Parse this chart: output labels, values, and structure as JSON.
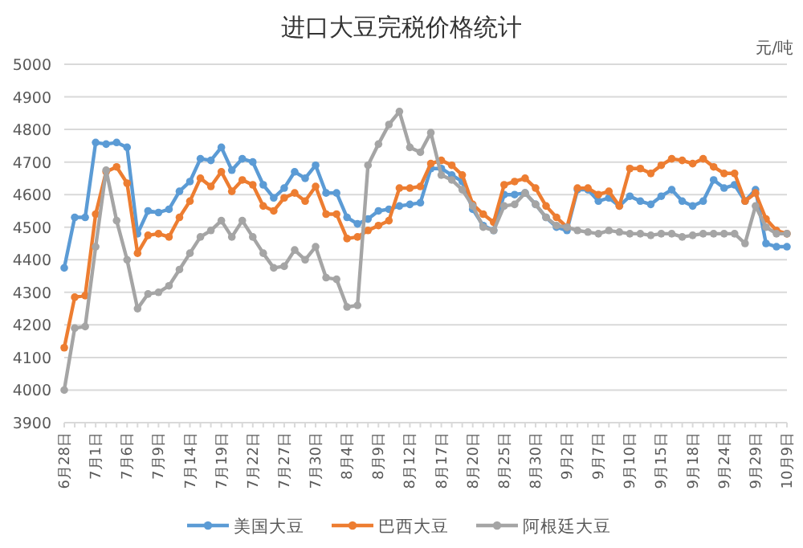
{
  "chart_data": {
    "type": "line",
    "title": "进口大豆完税价格统计",
    "ylabel": "元/吨",
    "categories": [
      "6月28日",
      null,
      null,
      "7月1日",
      null,
      null,
      "7月6日",
      null,
      null,
      "7月9日",
      null,
      null,
      "7月14日",
      null,
      null,
      "7月19日",
      null,
      null,
      "7月22日",
      null,
      null,
      "7月27日",
      null,
      null,
      "7月30日",
      null,
      null,
      "8月4日",
      null,
      null,
      "8月9日",
      null,
      null,
      "8月12日",
      null,
      null,
      "8月17日",
      null,
      null,
      "8月20日",
      null,
      null,
      "8月25日",
      null,
      null,
      "8月30日",
      null,
      null,
      "9月2日",
      null,
      null,
      "9月7日",
      null,
      null,
      "9月10日",
      null,
      null,
      "9月15日",
      null,
      null,
      "9月18日",
      null,
      null,
      "9月24日",
      null,
      null,
      "9月29日",
      null,
      null,
      "10月9日"
    ],
    "series": [
      {
        "name": "美国大豆",
        "color": "#5b9bd5",
        "values": [
          4375,
          4530,
          4530,
          4760,
          4755,
          4760,
          4745,
          4480,
          4550,
          4545,
          4555,
          4610,
          4640,
          4710,
          4705,
          4745,
          4675,
          4710,
          4700,
          4630,
          4590,
          4620,
          4670,
          4650,
          4690,
          4605,
          4605,
          4530,
          4510,
          4525,
          4550,
          4555,
          4565,
          4570,
          4575,
          4680,
          4680,
          4660,
          4640,
          4555,
          4505,
          4490,
          4600,
          4600,
          4605,
          4570,
          4530,
          4500,
          4490,
          4615,
          4615,
          4580,
          4590,
          4565,
          4595,
          4580,
          4570,
          4595,
          4615,
          4580,
          4565,
          4580,
          4645,
          4620,
          4630,
          4580,
          4615,
          4450,
          4440,
          4440
        ]
      },
      {
        "name": "巴西大豆",
        "color": "#ed7d31",
        "values": [
          4130,
          4285,
          4290,
          4540,
          4670,
          4685,
          4635,
          4420,
          4475,
          4480,
          4470,
          4530,
          4580,
          4650,
          4625,
          4670,
          4610,
          4645,
          4630,
          4565,
          4550,
          4590,
          4605,
          4580,
          4625,
          4540,
          4540,
          4465,
          4470,
          4490,
          4505,
          4520,
          4620,
          4620,
          4625,
          4695,
          4705,
          4690,
          4660,
          4570,
          4540,
          4515,
          4630,
          4640,
          4650,
          4620,
          4565,
          4530,
          4500,
          4620,
          4620,
          4600,
          4610,
          4565,
          4680,
          4680,
          4665,
          4690,
          4710,
          4705,
          4695,
          4710,
          4685,
          4665,
          4665,
          4580,
          4605,
          4525,
          4490,
          4480
        ]
      },
      {
        "name": "阿根廷大豆",
        "color": "#a5a5a5",
        "values": [
          4000,
          4190,
          4195,
          4440,
          4675,
          4520,
          4400,
          4250,
          4295,
          4300,
          4320,
          4370,
          4420,
          4470,
          4490,
          4520,
          4470,
          4520,
          4470,
          4420,
          4375,
          4380,
          4430,
          4400,
          4440,
          4345,
          4340,
          4255,
          4260,
          4690,
          4755,
          4815,
          4855,
          4745,
          4730,
          4790,
          4660,
          4645,
          4615,
          4565,
          4500,
          4490,
          4565,
          4570,
          4605,
          4570,
          4530,
          4505,
          4500,
          4490,
          4485,
          4480,
          4490,
          4485,
          4480,
          4480,
          4475,
          4480,
          4480,
          4470,
          4475,
          4480,
          4480,
          4480,
          4480,
          4450,
          4565,
          4500,
          4480,
          4480
        ]
      }
    ],
    "ylim": [
      3900,
      5000
    ],
    "yticks": [
      3900,
      4000,
      4100,
      4200,
      4300,
      4400,
      4500,
      4600,
      4700,
      4800,
      4900,
      5000
    ],
    "grid": "y",
    "legend": "bottom",
    "marker": "circle",
    "line_style": "solid"
  }
}
